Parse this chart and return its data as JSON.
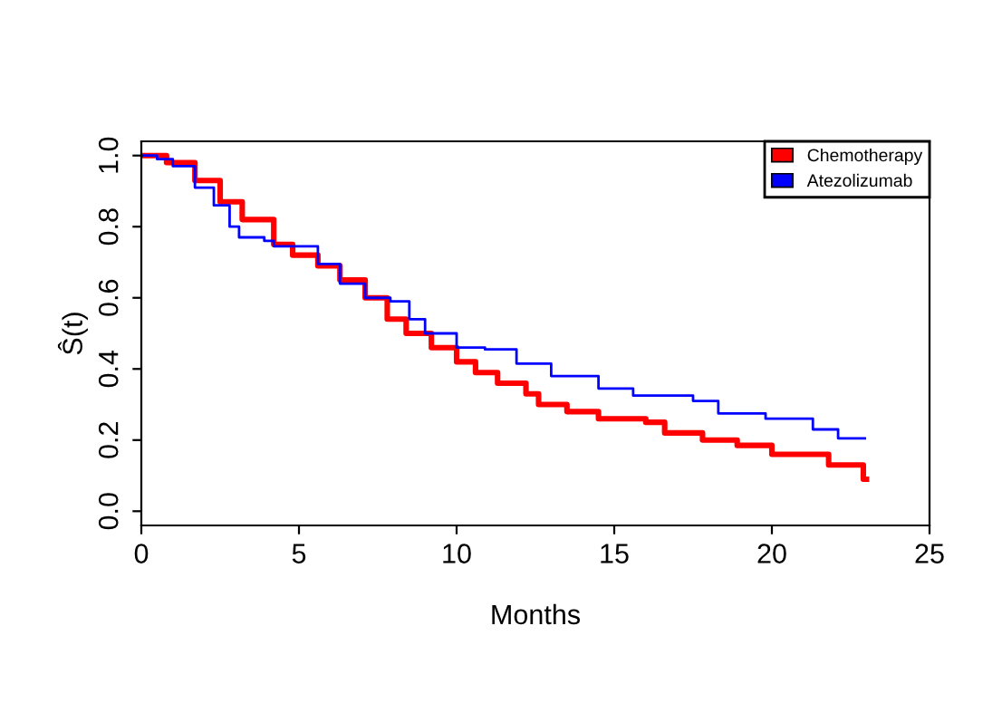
{
  "chart_data": {
    "type": "step",
    "xlabel": "Months",
    "ylabel": "Ŝ(t)",
    "xlim": [
      0,
      25
    ],
    "xticks": [
      0,
      5,
      10,
      15,
      20,
      25
    ],
    "ylim": [
      -0.04,
      1.04
    ],
    "yticks": [
      {
        "value": 0,
        "label": "0.0"
      },
      {
        "value": 0.2,
        "label": "0.2"
      },
      {
        "value": 0.4,
        "label": "0.4"
      },
      {
        "value": 0.6,
        "label": "0.6"
      },
      {
        "value": 0.8,
        "label": "0.8"
      },
      {
        "value": 1,
        "label": "1.0"
      }
    ],
    "grid": false,
    "legend": "top right",
    "line_style": "solid",
    "marker": "none",
    "series": [
      {
        "name": "Chemotherapy",
        "color": "#ff0000",
        "x": [
          0,
          0.8,
          1.7,
          2.5,
          3.2,
          4.2,
          4.8,
          5.6,
          6.3,
          7.1,
          7.8,
          8.4,
          9.2,
          10.0,
          10.6,
          11.3,
          12.2,
          12.6,
          13.5,
          14.5,
          16.0,
          16.6,
          17.8,
          18.9,
          20.0,
          21.8,
          22.9,
          23.0
        ],
        "values": [
          1.0,
          0.98,
          0.93,
          0.87,
          0.82,
          0.75,
          0.72,
          0.69,
          0.65,
          0.6,
          0.54,
          0.5,
          0.46,
          0.42,
          0.39,
          0.36,
          0.33,
          0.3,
          0.28,
          0.26,
          0.25,
          0.22,
          0.2,
          0.185,
          0.16,
          0.13,
          0.09,
          0.09
        ]
      },
      {
        "name": "Atezolizumab",
        "color": "#0000ff",
        "x": [
          0,
          0.5,
          1.0,
          1.7,
          2.3,
          2.8,
          3.1,
          3.9,
          4.2,
          5.6,
          6.3,
          7.1,
          7.9,
          8.5,
          9.0,
          10.0,
          10.9,
          11.9,
          13.0,
          14.5,
          15.6,
          17.5,
          18.3,
          19.8,
          21.3,
          22.1,
          22.95
        ],
        "values": [
          1.0,
          0.99,
          0.97,
          0.91,
          0.86,
          0.8,
          0.77,
          0.76,
          0.745,
          0.695,
          0.64,
          0.6,
          0.59,
          0.54,
          0.5,
          0.46,
          0.455,
          0.415,
          0.38,
          0.345,
          0.325,
          0.31,
          0.275,
          0.26,
          0.23,
          0.205,
          0.205
        ]
      }
    ]
  }
}
